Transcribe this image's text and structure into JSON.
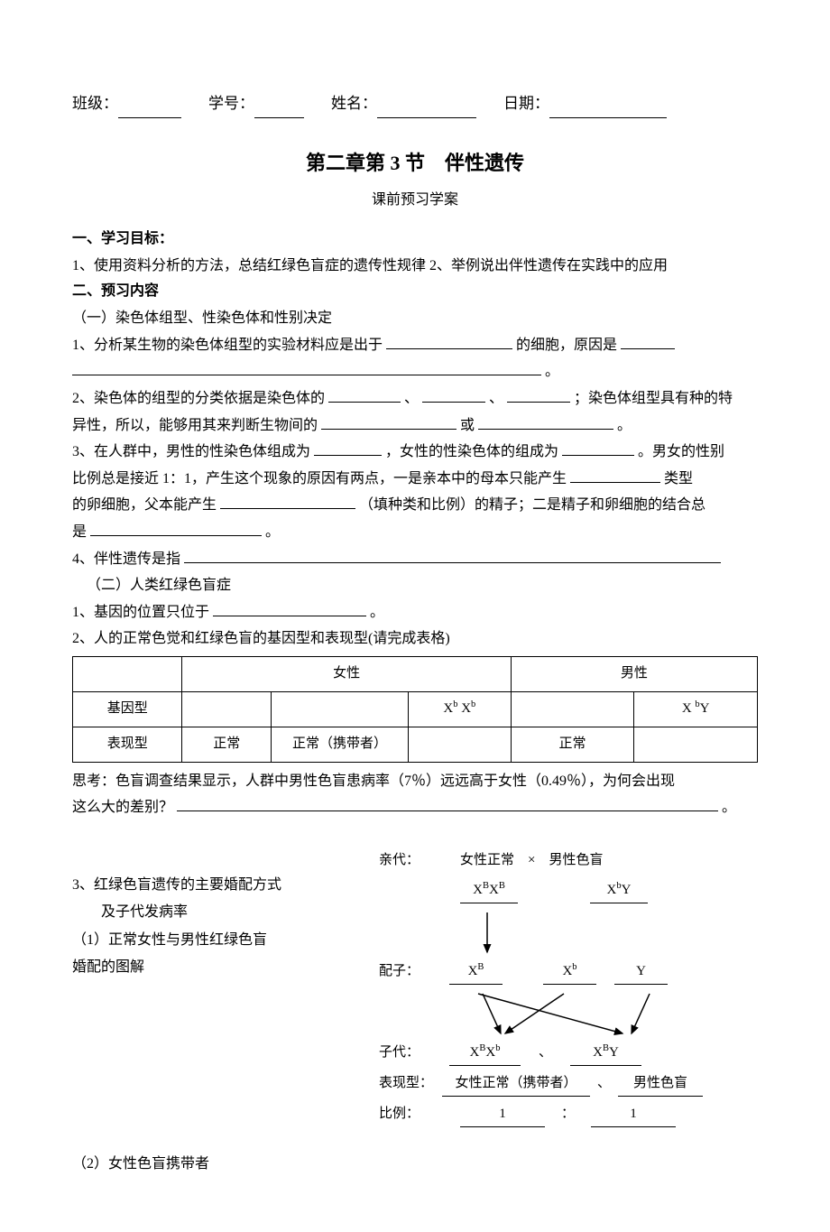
{
  "header": {
    "class_label": "班级：",
    "student_id_label": "学号：",
    "name_label": "姓名：",
    "date_label": "日期：",
    "blank_widths": {
      "class": 70,
      "student_id": 55,
      "name": 110,
      "date": 130
    }
  },
  "title": "第二章第 3 节　伴性遗传",
  "subtitle": "课前预习学案",
  "section1": {
    "heading": "一、学习目标：",
    "line": "1、使用资料分析的方法，总结红绿色盲症的遗传性规律  2、举例说出伴性遗传在实践中的应用"
  },
  "section2": {
    "heading": "二、预习内容",
    "sub1": "（一）染色体组型、性染色体和性别决定",
    "line1a": "1、分析某生物的染色体组型的实验材料应是出于",
    "line1b": "的细胞，原因是",
    "line2a": "2、染色体的组型的分类依据是染色体的",
    "line2b": "；染色体组型具有种的特",
    "line2c": "异性，所以，能够用其来判断生物间的",
    "line2d": "或",
    "line3a": "3、在人群中，男性的性染色体组成为",
    "line3b": "，女性的性染色体的组成为",
    "line3c": "。男女的性别",
    "line3d": "比例总是接近 1：1，产生这个现象的原因有两点，一是亲本中的母本只能产生",
    "line3e": "类型",
    "line3f": "的卵细胞，父本能产生",
    "line3g": "（填种类和比例）的精子；二是精子和卵细胞的结合总",
    "line3h": "是",
    "line4a": "4、伴性遗传是指",
    "sub2": "（二）人类红绿色盲症",
    "lineB1a": "1、基因的位置只位于",
    "lineB2": "2、人的正常色觉和红绿色盲的基因型和表现型(请完成表格)"
  },
  "table": {
    "header": {
      "c1": "",
      "c2": "女性",
      "c3": "男性"
    },
    "row1": {
      "c1": "基因型",
      "c2": "",
      "c3": "",
      "c4": "X<sup>b</sup>  X<sup>b</sup>",
      "c5": "",
      "c6": "X  <sup>b</sup>Y"
    },
    "row2": {
      "c1": "表现型",
      "c2": "正常",
      "c3": "正常（携带者）",
      "c4": "",
      "c5": "正常",
      "c6": ""
    }
  },
  "think": {
    "a": "思考：色盲调查结果显示，人群中男性色盲患病率（7％）远远高于女性（0.49％），为何会出现",
    "b": "这么大的差别？"
  },
  "part3": {
    "left": {
      "l1": "3、红绿色盲遗传的主要婚配方式",
      "l2": "　　及子代发病率",
      "l3": "（1）正常女性与男性红绿色盲",
      "l4": "婚配的图解",
      "l5": "（2）女性色盲携带者"
    },
    "diagram": {
      "parent_label": "亲代：",
      "parent_text": "女性正常　×　男性色盲",
      "parent_g1": "X<sup>B</sup>X<sup>B</sup>",
      "parent_g2": "X<sup>b</sup>Y",
      "gamete_label": "配子：",
      "g1": "X<sup>B</sup>",
      "g2": "X<sup>b</sup>",
      "g3": "Y",
      "offspring_label": "子代：",
      "o1": "X<sup>B</sup>X<sup>b</sup>",
      "o_sep": "、",
      "o2": "X<sup>B</sup>Y",
      "pheno_label": "表现型：",
      "p1": "女性正常（携带者）",
      "p_sep": "、",
      "p2": "男性色盲",
      "ratio_label": "比例：",
      "r1": "1",
      "r_sep": "：",
      "r2": "1"
    }
  },
  "style": {
    "font_size_body": 16,
    "font_size_title": 22,
    "text_color": "#000000",
    "bg_color": "#ffffff",
    "border_color": "#000000"
  }
}
